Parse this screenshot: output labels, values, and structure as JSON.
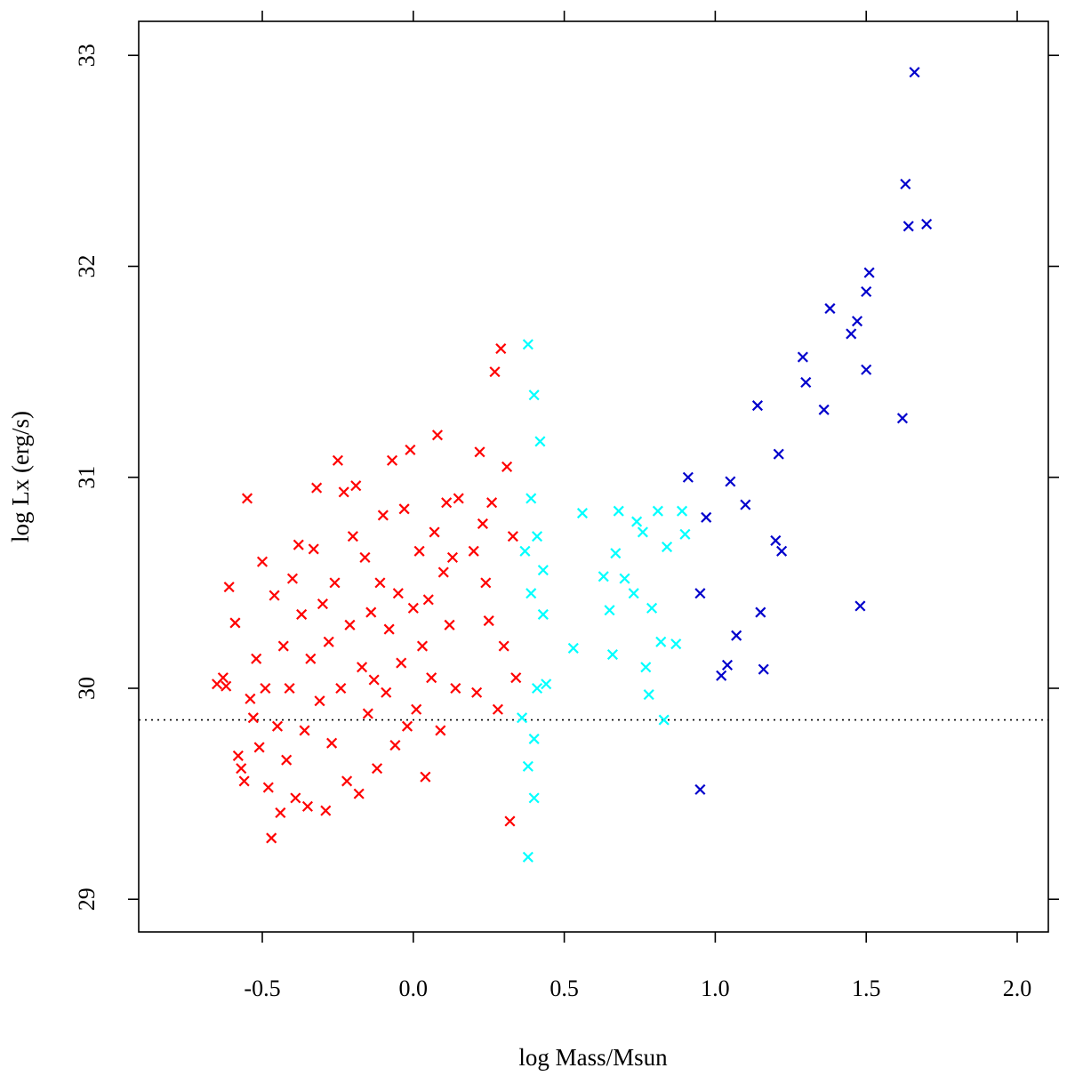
{
  "chart_data": {
    "type": "scatter",
    "title": "",
    "xlabel": "log Mass/Msun",
    "ylabel": "log Lx (erg/s)",
    "xlim": [
      -0.9,
      2.1
    ],
    "ylim": [
      28.85,
      33.1
    ],
    "x_ticks": [
      "-0.5",
      "0.0",
      "0.5",
      "1.0",
      "1.5",
      "2.0"
    ],
    "y_ticks": [
      "29",
      "30",
      "31",
      "32",
      "33"
    ],
    "marker": "x",
    "grid": false,
    "legend": "none",
    "reference_line": {
      "type": "horizontal",
      "style": "dotted",
      "y": 29.85
    },
    "series": [
      {
        "color": "#ff0000",
        "points": [
          [
            -0.65,
            30.02
          ],
          [
            -0.63,
            30.05
          ],
          [
            -0.62,
            30.01
          ],
          [
            -0.61,
            30.48
          ],
          [
            -0.59,
            30.31
          ],
          [
            -0.58,
            29.68
          ],
          [
            -0.57,
            29.62
          ],
          [
            -0.56,
            29.56
          ],
          [
            -0.55,
            30.9
          ],
          [
            -0.54,
            29.95
          ],
          [
            -0.53,
            29.86
          ],
          [
            -0.52,
            30.14
          ],
          [
            -0.51,
            29.72
          ],
          [
            -0.5,
            30.6
          ],
          [
            -0.49,
            30.0
          ],
          [
            -0.48,
            29.53
          ],
          [
            -0.47,
            29.29
          ],
          [
            -0.46,
            30.44
          ],
          [
            -0.45,
            29.82
          ],
          [
            -0.44,
            29.41
          ],
          [
            -0.43,
            30.2
          ],
          [
            -0.42,
            29.66
          ],
          [
            -0.41,
            30.0
          ],
          [
            -0.4,
            30.52
          ],
          [
            -0.39,
            29.48
          ],
          [
            -0.38,
            30.68
          ],
          [
            -0.37,
            30.35
          ],
          [
            -0.36,
            29.8
          ],
          [
            -0.35,
            29.44
          ],
          [
            -0.34,
            30.14
          ],
          [
            -0.33,
            30.66
          ],
          [
            -0.32,
            30.95
          ],
          [
            -0.31,
            29.94
          ],
          [
            -0.3,
            30.4
          ],
          [
            -0.29,
            29.42
          ],
          [
            -0.28,
            30.22
          ],
          [
            -0.27,
            29.74
          ],
          [
            -0.26,
            30.5
          ],
          [
            -0.25,
            31.08
          ],
          [
            -0.24,
            30.0
          ],
          [
            -0.23,
            30.93
          ],
          [
            -0.22,
            29.56
          ],
          [
            -0.21,
            30.3
          ],
          [
            -0.2,
            30.72
          ],
          [
            -0.19,
            30.96
          ],
          [
            -0.18,
            29.5
          ],
          [
            -0.17,
            30.1
          ],
          [
            -0.16,
            30.62
          ],
          [
            -0.15,
            29.88
          ],
          [
            -0.14,
            30.36
          ],
          [
            -0.13,
            30.04
          ],
          [
            -0.12,
            29.62
          ],
          [
            -0.11,
            30.5
          ],
          [
            -0.1,
            30.82
          ],
          [
            -0.09,
            29.98
          ],
          [
            -0.08,
            30.28
          ],
          [
            -0.07,
            31.08
          ],
          [
            -0.06,
            29.73
          ],
          [
            -0.05,
            30.45
          ],
          [
            -0.04,
            30.12
          ],
          [
            -0.03,
            30.85
          ],
          [
            -0.02,
            29.82
          ],
          [
            -0.01,
            31.13
          ],
          [
            0.0,
            30.38
          ],
          [
            0.01,
            29.9
          ],
          [
            0.02,
            30.65
          ],
          [
            0.03,
            30.2
          ],
          [
            0.04,
            29.58
          ],
          [
            0.05,
            30.42
          ],
          [
            0.06,
            30.05
          ],
          [
            0.07,
            30.74
          ],
          [
            0.08,
            31.2
          ],
          [
            0.09,
            29.8
          ],
          [
            0.1,
            30.55
          ],
          [
            0.11,
            30.88
          ],
          [
            0.12,
            30.3
          ],
          [
            0.13,
            30.62
          ],
          [
            0.14,
            30.0
          ],
          [
            0.15,
            30.9
          ],
          [
            0.2,
            30.65
          ],
          [
            0.21,
            29.98
          ],
          [
            0.22,
            31.12
          ],
          [
            0.23,
            30.78
          ],
          [
            0.24,
            30.5
          ],
          [
            0.25,
            30.32
          ],
          [
            0.26,
            30.88
          ],
          [
            0.27,
            31.5
          ],
          [
            0.28,
            29.9
          ],
          [
            0.29,
            31.61
          ],
          [
            0.3,
            30.2
          ],
          [
            0.31,
            31.05
          ],
          [
            0.32,
            29.37
          ],
          [
            0.33,
            30.72
          ],
          [
            0.34,
            30.05
          ]
        ]
      },
      {
        "color": "#00ffff",
        "points": [
          [
            0.36,
            29.86
          ],
          [
            0.37,
            30.65
          ],
          [
            0.38,
            31.63
          ],
          [
            0.38,
            29.2
          ],
          [
            0.38,
            29.63
          ],
          [
            0.39,
            30.9
          ],
          [
            0.39,
            30.45
          ],
          [
            0.4,
            31.39
          ],
          [
            0.4,
            29.76
          ],
          [
            0.4,
            29.48
          ],
          [
            0.41,
            30.72
          ],
          [
            0.41,
            30.0
          ],
          [
            0.42,
            31.17
          ],
          [
            0.43,
            30.56
          ],
          [
            0.43,
            30.35
          ],
          [
            0.44,
            30.02
          ],
          [
            0.53,
            30.19
          ],
          [
            0.56,
            30.83
          ],
          [
            0.63,
            30.53
          ],
          [
            0.65,
            30.37
          ],
          [
            0.66,
            30.16
          ],
          [
            0.67,
            30.64
          ],
          [
            0.68,
            30.84
          ],
          [
            0.7,
            30.52
          ],
          [
            0.73,
            30.45
          ],
          [
            0.74,
            30.79
          ],
          [
            0.76,
            30.74
          ],
          [
            0.77,
            30.1
          ],
          [
            0.78,
            29.97
          ],
          [
            0.79,
            30.38
          ],
          [
            0.81,
            30.84
          ],
          [
            0.82,
            30.22
          ],
          [
            0.83,
            29.85
          ],
          [
            0.84,
            30.67
          ],
          [
            0.87,
            30.21
          ],
          [
            0.89,
            30.84
          ],
          [
            0.9,
            30.73
          ]
        ]
      },
      {
        "color": "#0000cc",
        "points": [
          [
            0.91,
            31.0
          ],
          [
            0.95,
            30.45
          ],
          [
            0.95,
            29.52
          ],
          [
            0.97,
            30.81
          ],
          [
            1.02,
            30.06
          ],
          [
            1.04,
            30.11
          ],
          [
            1.05,
            30.98
          ],
          [
            1.07,
            30.25
          ],
          [
            1.1,
            30.87
          ],
          [
            1.14,
            31.34
          ],
          [
            1.15,
            30.36
          ],
          [
            1.16,
            30.09
          ],
          [
            1.2,
            30.7
          ],
          [
            1.21,
            31.11
          ],
          [
            1.22,
            30.65
          ],
          [
            1.29,
            31.57
          ],
          [
            1.3,
            31.45
          ],
          [
            1.36,
            31.32
          ],
          [
            1.38,
            31.8
          ],
          [
            1.45,
            31.68
          ],
          [
            1.47,
            31.74
          ],
          [
            1.48,
            30.39
          ],
          [
            1.5,
            31.88
          ],
          [
            1.5,
            31.51
          ],
          [
            1.51,
            31.97
          ],
          [
            1.62,
            31.28
          ],
          [
            1.63,
            32.39
          ],
          [
            1.64,
            32.19
          ],
          [
            1.66,
            32.92
          ],
          [
            1.7,
            32.2
          ]
        ]
      }
    ]
  }
}
